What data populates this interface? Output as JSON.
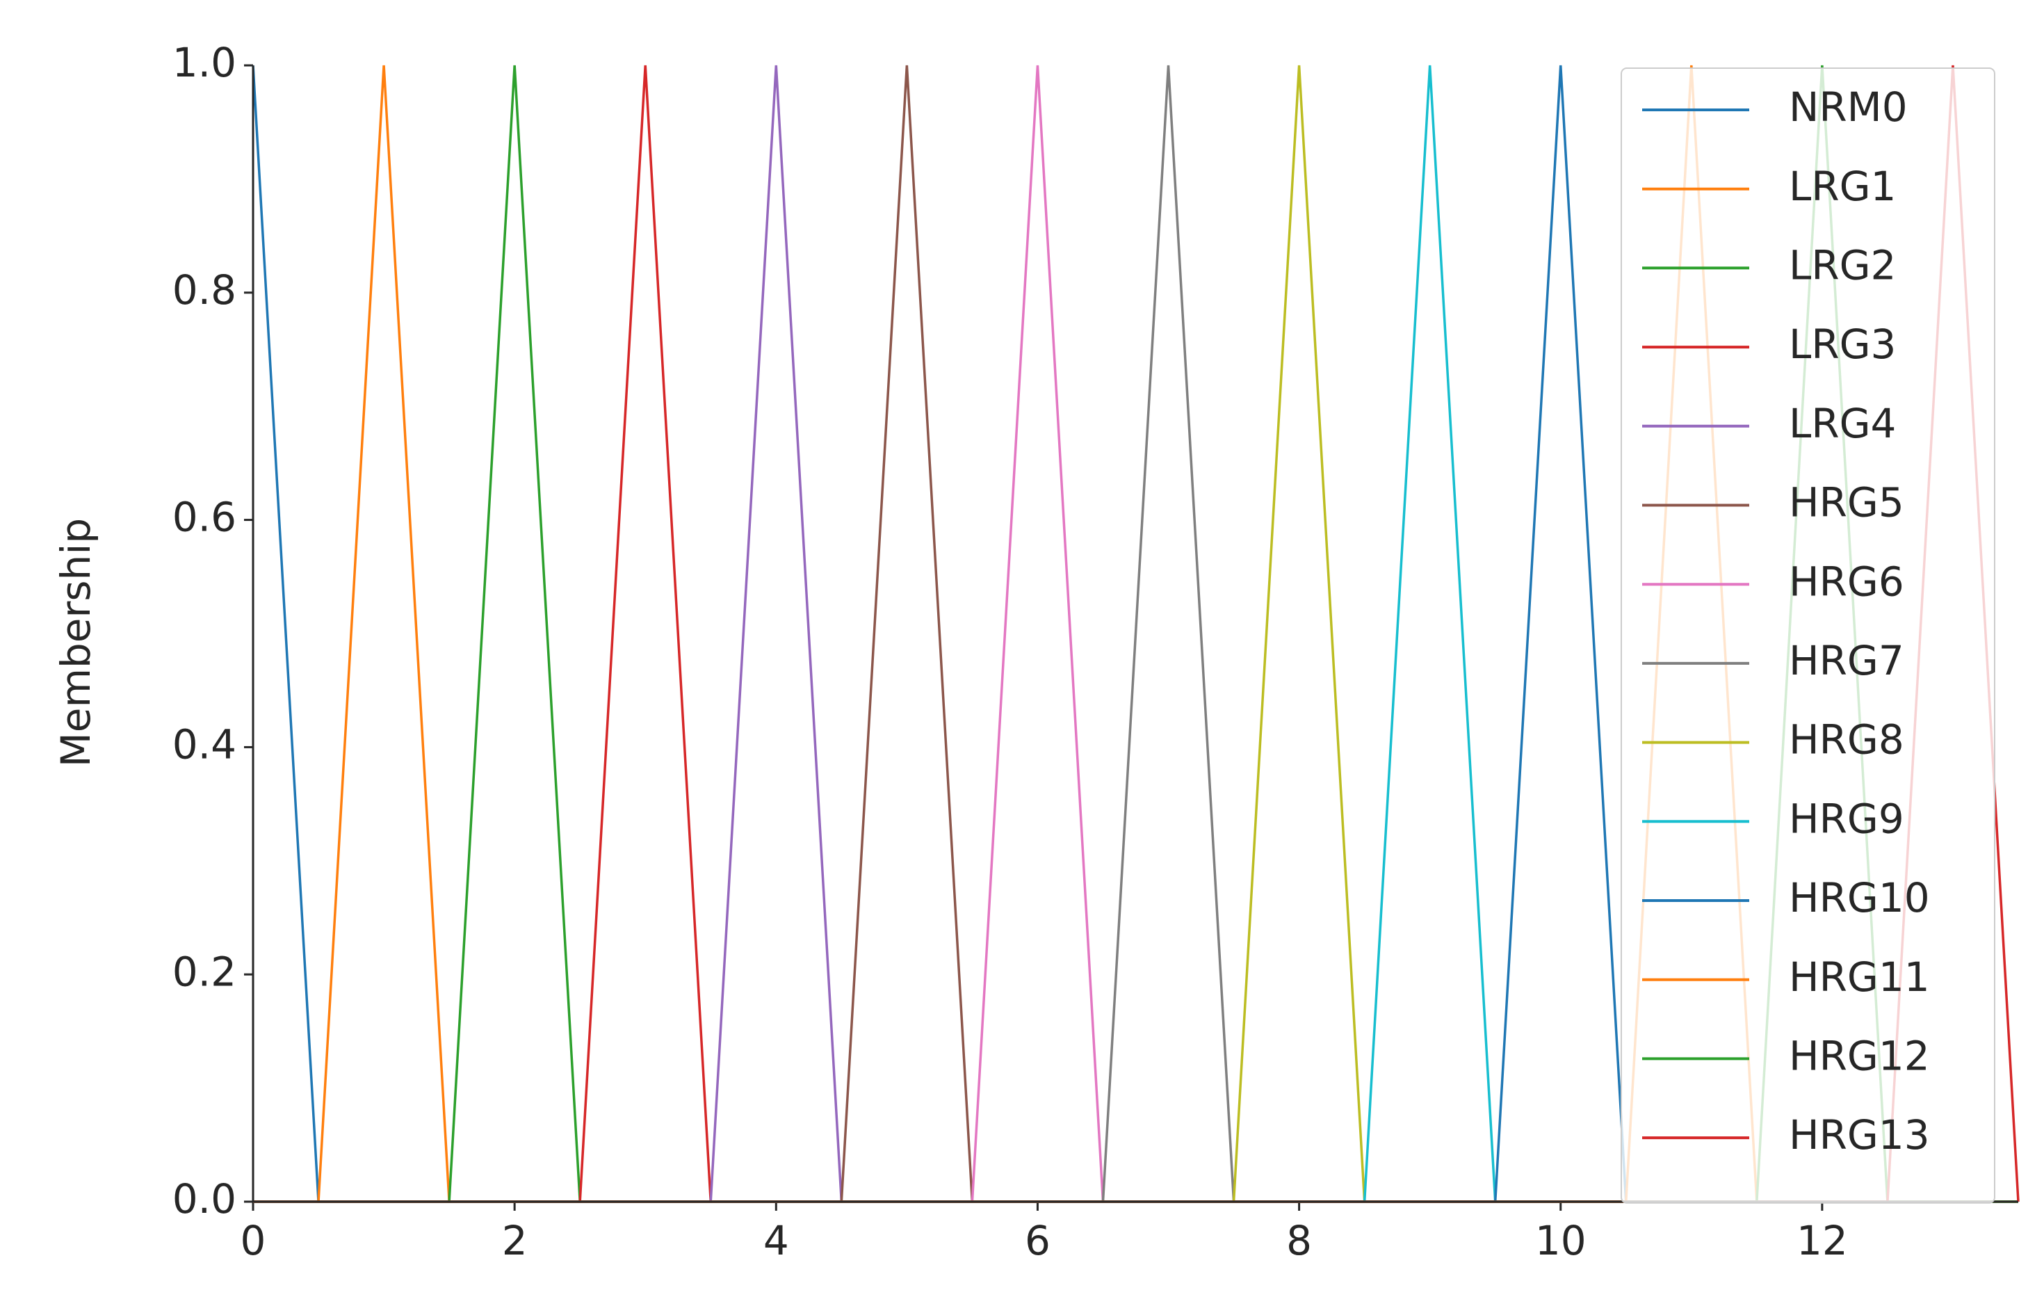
{
  "chart_data": {
    "type": "line",
    "ylabel": "Membership",
    "x": [
      0,
      0.5,
      1,
      1.5,
      2,
      2.5,
      3,
      3.5,
      4,
      4.5,
      5,
      5.5,
      6,
      6.5,
      7,
      7.5,
      8,
      8.5,
      9,
      9.5,
      10,
      10.5,
      11,
      11.5,
      12,
      12.5,
      13,
      13.5
    ],
    "series": [
      {
        "name": "NRM0",
        "color": "#1f77b4",
        "values": [
          1,
          0,
          0,
          0,
          0,
          0,
          0,
          0,
          0,
          0,
          0,
          0,
          0,
          0,
          0,
          0,
          0,
          0,
          0,
          0,
          0,
          0,
          0,
          0,
          0,
          0,
          0,
          0
        ]
      },
      {
        "name": "LRG1",
        "color": "#ff7f0e",
        "values": [
          0,
          0,
          1,
          0,
          0,
          0,
          0,
          0,
          0,
          0,
          0,
          0,
          0,
          0,
          0,
          0,
          0,
          0,
          0,
          0,
          0,
          0,
          0,
          0,
          0,
          0,
          0,
          0
        ]
      },
      {
        "name": "LRG2",
        "color": "#2ca02c",
        "values": [
          0,
          0,
          0,
          0,
          1,
          0,
          0,
          0,
          0,
          0,
          0,
          0,
          0,
          0,
          0,
          0,
          0,
          0,
          0,
          0,
          0,
          0,
          0,
          0,
          0,
          0,
          0,
          0
        ]
      },
      {
        "name": "LRG3",
        "color": "#d62728",
        "values": [
          0,
          0,
          0,
          0,
          0,
          0,
          1,
          0,
          0,
          0,
          0,
          0,
          0,
          0,
          0,
          0,
          0,
          0,
          0,
          0,
          0,
          0,
          0,
          0,
          0,
          0,
          0,
          0
        ]
      },
      {
        "name": "LRG4",
        "color": "#9467bd",
        "values": [
          0,
          0,
          0,
          0,
          0,
          0,
          0,
          0,
          1,
          0,
          0,
          0,
          0,
          0,
          0,
          0,
          0,
          0,
          0,
          0,
          0,
          0,
          0,
          0,
          0,
          0,
          0,
          0
        ]
      },
      {
        "name": "HRG5",
        "color": "#8c564b",
        "values": [
          0,
          0,
          0,
          0,
          0,
          0,
          0,
          0,
          0,
          0,
          1,
          0,
          0,
          0,
          0,
          0,
          0,
          0,
          0,
          0,
          0,
          0,
          0,
          0,
          0,
          0,
          0,
          0
        ]
      },
      {
        "name": "HRG6",
        "color": "#e377c2",
        "values": [
          0,
          0,
          0,
          0,
          0,
          0,
          0,
          0,
          0,
          0,
          0,
          0,
          1,
          0,
          0,
          0,
          0,
          0,
          0,
          0,
          0,
          0,
          0,
          0,
          0,
          0,
          0,
          0
        ]
      },
      {
        "name": "HRG7",
        "color": "#7f7f7f",
        "values": [
          0,
          0,
          0,
          0,
          0,
          0,
          0,
          0,
          0,
          0,
          0,
          0,
          0,
          0,
          1,
          0,
          0,
          0,
          0,
          0,
          0,
          0,
          0,
          0,
          0,
          0,
          0,
          0
        ]
      },
      {
        "name": "HRG8",
        "color": "#bcbd22",
        "values": [
          0,
          0,
          0,
          0,
          0,
          0,
          0,
          0,
          0,
          0,
          0,
          0,
          0,
          0,
          0,
          0,
          1,
          0,
          0,
          0,
          0,
          0,
          0,
          0,
          0,
          0,
          0,
          0
        ]
      },
      {
        "name": "HRG9",
        "color": "#17becf",
        "values": [
          0,
          0,
          0,
          0,
          0,
          0,
          0,
          0,
          0,
          0,
          0,
          0,
          0,
          0,
          0,
          0,
          0,
          0,
          1,
          0,
          0,
          0,
          0,
          0,
          0,
          0,
          0,
          0
        ]
      },
      {
        "name": "HRG10",
        "color": "#1f77b4",
        "values": [
          0,
          0,
          0,
          0,
          0,
          0,
          0,
          0,
          0,
          0,
          0,
          0,
          0,
          0,
          0,
          0,
          0,
          0,
          0,
          0,
          1,
          0,
          0,
          0,
          0,
          0,
          0,
          0
        ]
      },
      {
        "name": "HRG11",
        "color": "#ff7f0e",
        "values": [
          0,
          0,
          0,
          0,
          0,
          0,
          0,
          0,
          0,
          0,
          0,
          0,
          0,
          0,
          0,
          0,
          0,
          0,
          0,
          0,
          0,
          0,
          1,
          0,
          0,
          0,
          0,
          0
        ]
      },
      {
        "name": "HRG12",
        "color": "#2ca02c",
        "values": [
          0,
          0,
          0,
          0,
          0,
          0,
          0,
          0,
          0,
          0,
          0,
          0,
          0,
          0,
          0,
          0,
          0,
          0,
          0,
          0,
          0,
          0,
          0,
          0,
          1,
          0,
          0,
          0
        ]
      },
      {
        "name": "HRG13",
        "color": "#d62728",
        "values": [
          0,
          0,
          0,
          0,
          0,
          0,
          0,
          0,
          0,
          0,
          0,
          0,
          0,
          0,
          0,
          0,
          0,
          0,
          0,
          0,
          0,
          0,
          0,
          0,
          0,
          0,
          1,
          0
        ]
      }
    ],
    "xlim": [
      0,
      13.5
    ],
    "xticks": [
      0,
      2,
      4,
      6,
      8,
      10,
      12
    ],
    "ylim": [
      0,
      1
    ],
    "yticks": [
      {
        "value": 0,
        "label": "0.0"
      },
      0.2,
      0.4,
      0.6,
      0.8,
      {
        "value": 1,
        "label": "1.0"
      }
    ],
    "legend": "upper right"
  }
}
